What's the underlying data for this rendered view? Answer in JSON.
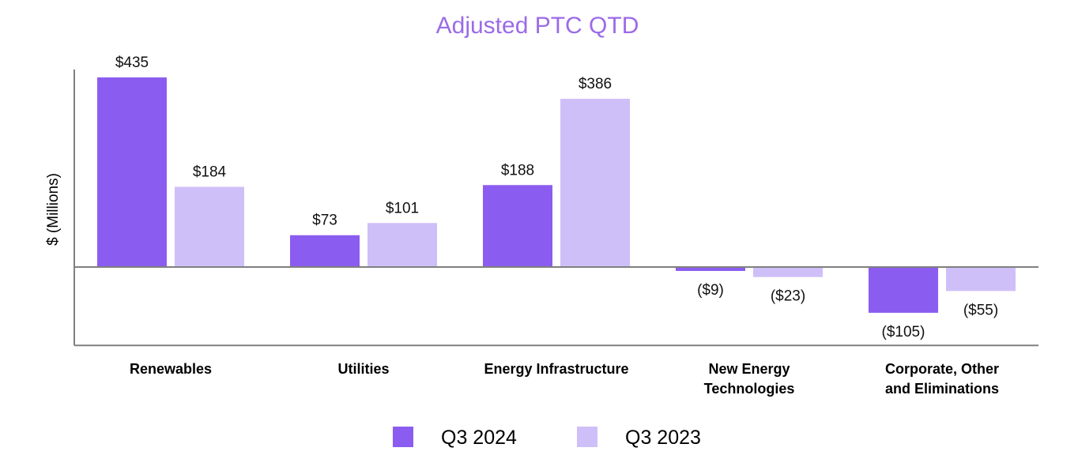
{
  "chart_data": {
    "type": "bar",
    "title": "Adjusted PTC QTD",
    "ylabel": "$ (Millions)",
    "xlabel": "",
    "categories": [
      [
        "Renewables"
      ],
      [
        "Utilities"
      ],
      [
        "Energy Infrastructure"
      ],
      [
        "New Energy",
        "Technologies"
      ],
      [
        "Corporate, Other",
        "and Eliminations"
      ]
    ],
    "series": [
      {
        "name": "Q3 2024",
        "color": "#8b5cf0",
        "values": [
          435,
          73,
          188,
          -9,
          -105
        ],
        "labels": [
          "$435",
          "$73",
          "$188",
          "($9)",
          "($105)"
        ]
      },
      {
        "name": "Q3 2023",
        "color": "#cfbff8",
        "values": [
          184,
          101,
          386,
          -23,
          -55
        ],
        "labels": [
          "$184",
          "$101",
          "$386",
          "($23)",
          "($55)"
        ]
      }
    ],
    "title_color": "#9b6be8",
    "ylim": [
      -180,
      435
    ],
    "grid": false,
    "legend_position": "bottom"
  }
}
